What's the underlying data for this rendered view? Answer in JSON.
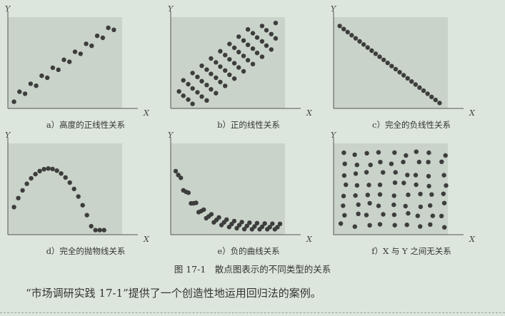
{
  "axis_labels": {
    "y": "Y",
    "x": "X"
  },
  "panels": [
    {
      "caption": "a）高度的正线性关系",
      "pattern": "strong-positive-linear"
    },
    {
      "caption": "b）正的线性关系",
      "pattern": "positive-linear"
    },
    {
      "caption": "c）完全的负线性关系",
      "pattern": "perfect-negative-linear"
    },
    {
      "caption": "d）完全的抛物线关系",
      "pattern": "perfect-parabolic"
    },
    {
      "caption": "e）负的曲线关系",
      "pattern": "negative-curvilinear"
    },
    {
      "caption": "f）X 与 Y 之间无关系",
      "pattern": "no-relationship"
    }
  ],
  "figure_title": "图 17-1　散点图表示的不同类型的关系",
  "body_text": "“市场调研实践 17-1”提供了一个创造性地运用回归法的案例。",
  "colors": {
    "dot": "#3d3d3d",
    "plot_fill": "#c9d3c9",
    "axis": "#555555"
  }
}
